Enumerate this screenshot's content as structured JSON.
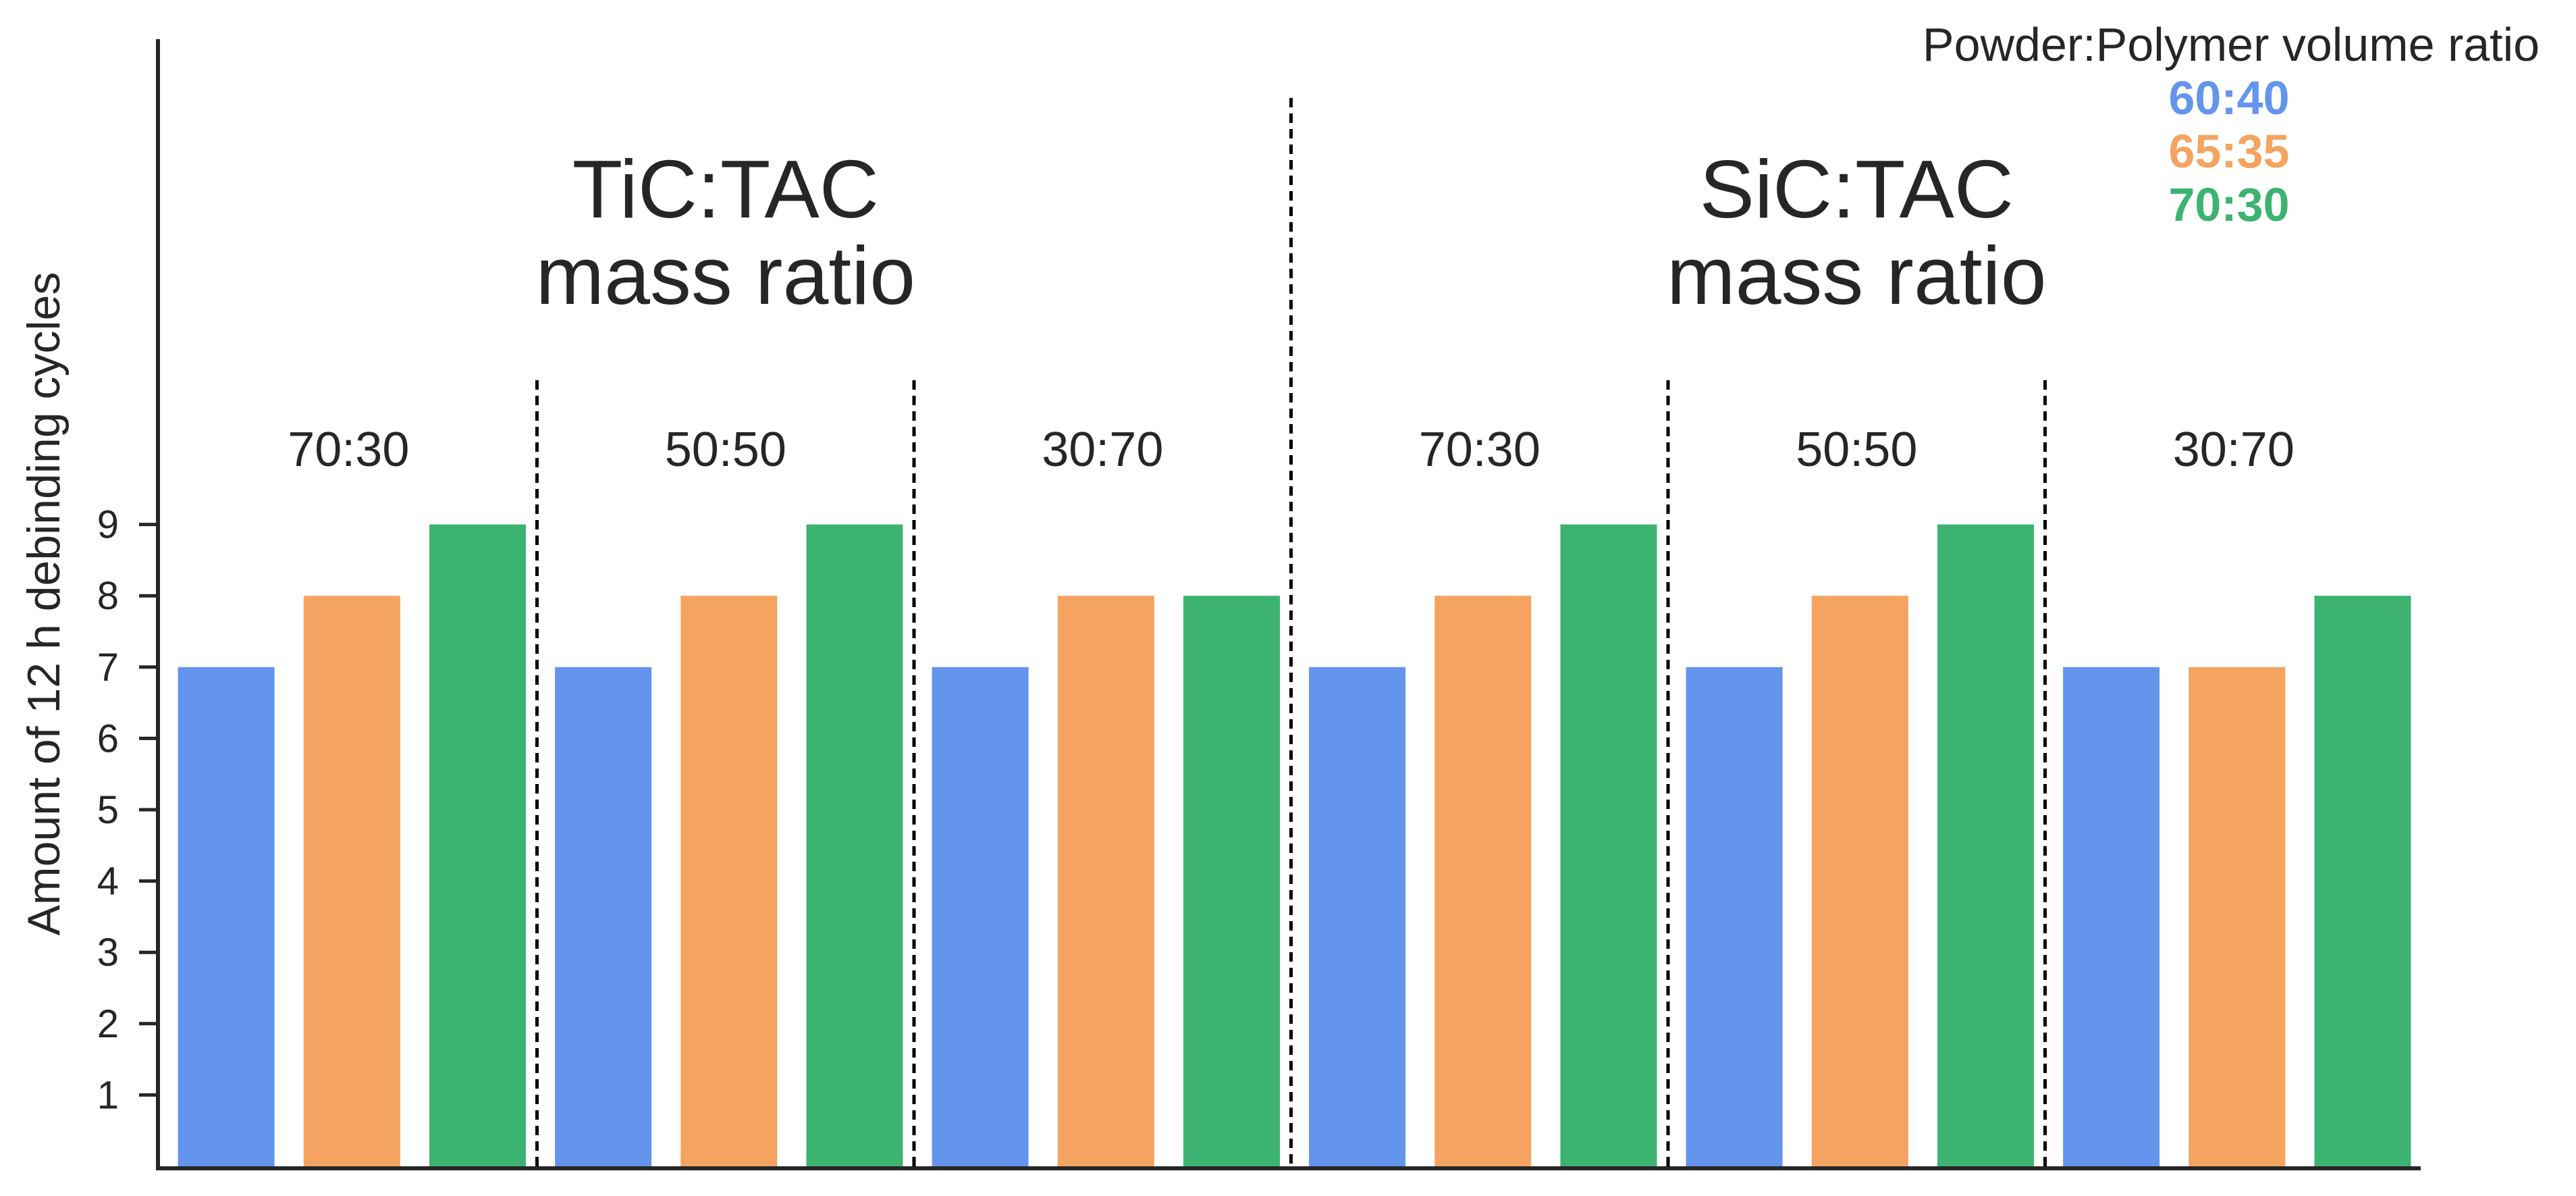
{
  "chart_data": {
    "type": "bar",
    "ylabel": "Amount of 12 h debinding cycles",
    "xlabel": "",
    "ylim": [
      0,
      9
    ],
    "yticks": [
      1,
      2,
      3,
      4,
      5,
      6,
      7,
      8,
      9
    ],
    "grid": false,
    "families": [
      {
        "label": "TiC:TAC\nmass ratio",
        "label_lines": [
          "TiC:TAC",
          "mass ratio"
        ]
      },
      {
        "label": "SiC:TAC\nmass ratio",
        "label_lines": [
          "SiC:TAC",
          "mass ratio"
        ]
      }
    ],
    "categories": [
      "70:30",
      "50:50",
      "30:70",
      "70:30",
      "50:50",
      "30:70"
    ],
    "category_family": [
      0,
      0,
      0,
      1,
      1,
      1
    ],
    "legend": {
      "title": "Powder:Polymer volume ratio",
      "placement": "top-right"
    },
    "series": [
      {
        "name": "60:40",
        "color": "#6495ED",
        "values": [
          7,
          7,
          7,
          7,
          7,
          7
        ]
      },
      {
        "name": "65:35",
        "color": "#F4A460",
        "values": [
          8,
          8,
          8,
          8,
          8,
          7
        ]
      },
      {
        "name": "70:30",
        "color": "#3CB371",
        "values": [
          9,
          9,
          8,
          9,
          9,
          8
        ]
      }
    ]
  }
}
